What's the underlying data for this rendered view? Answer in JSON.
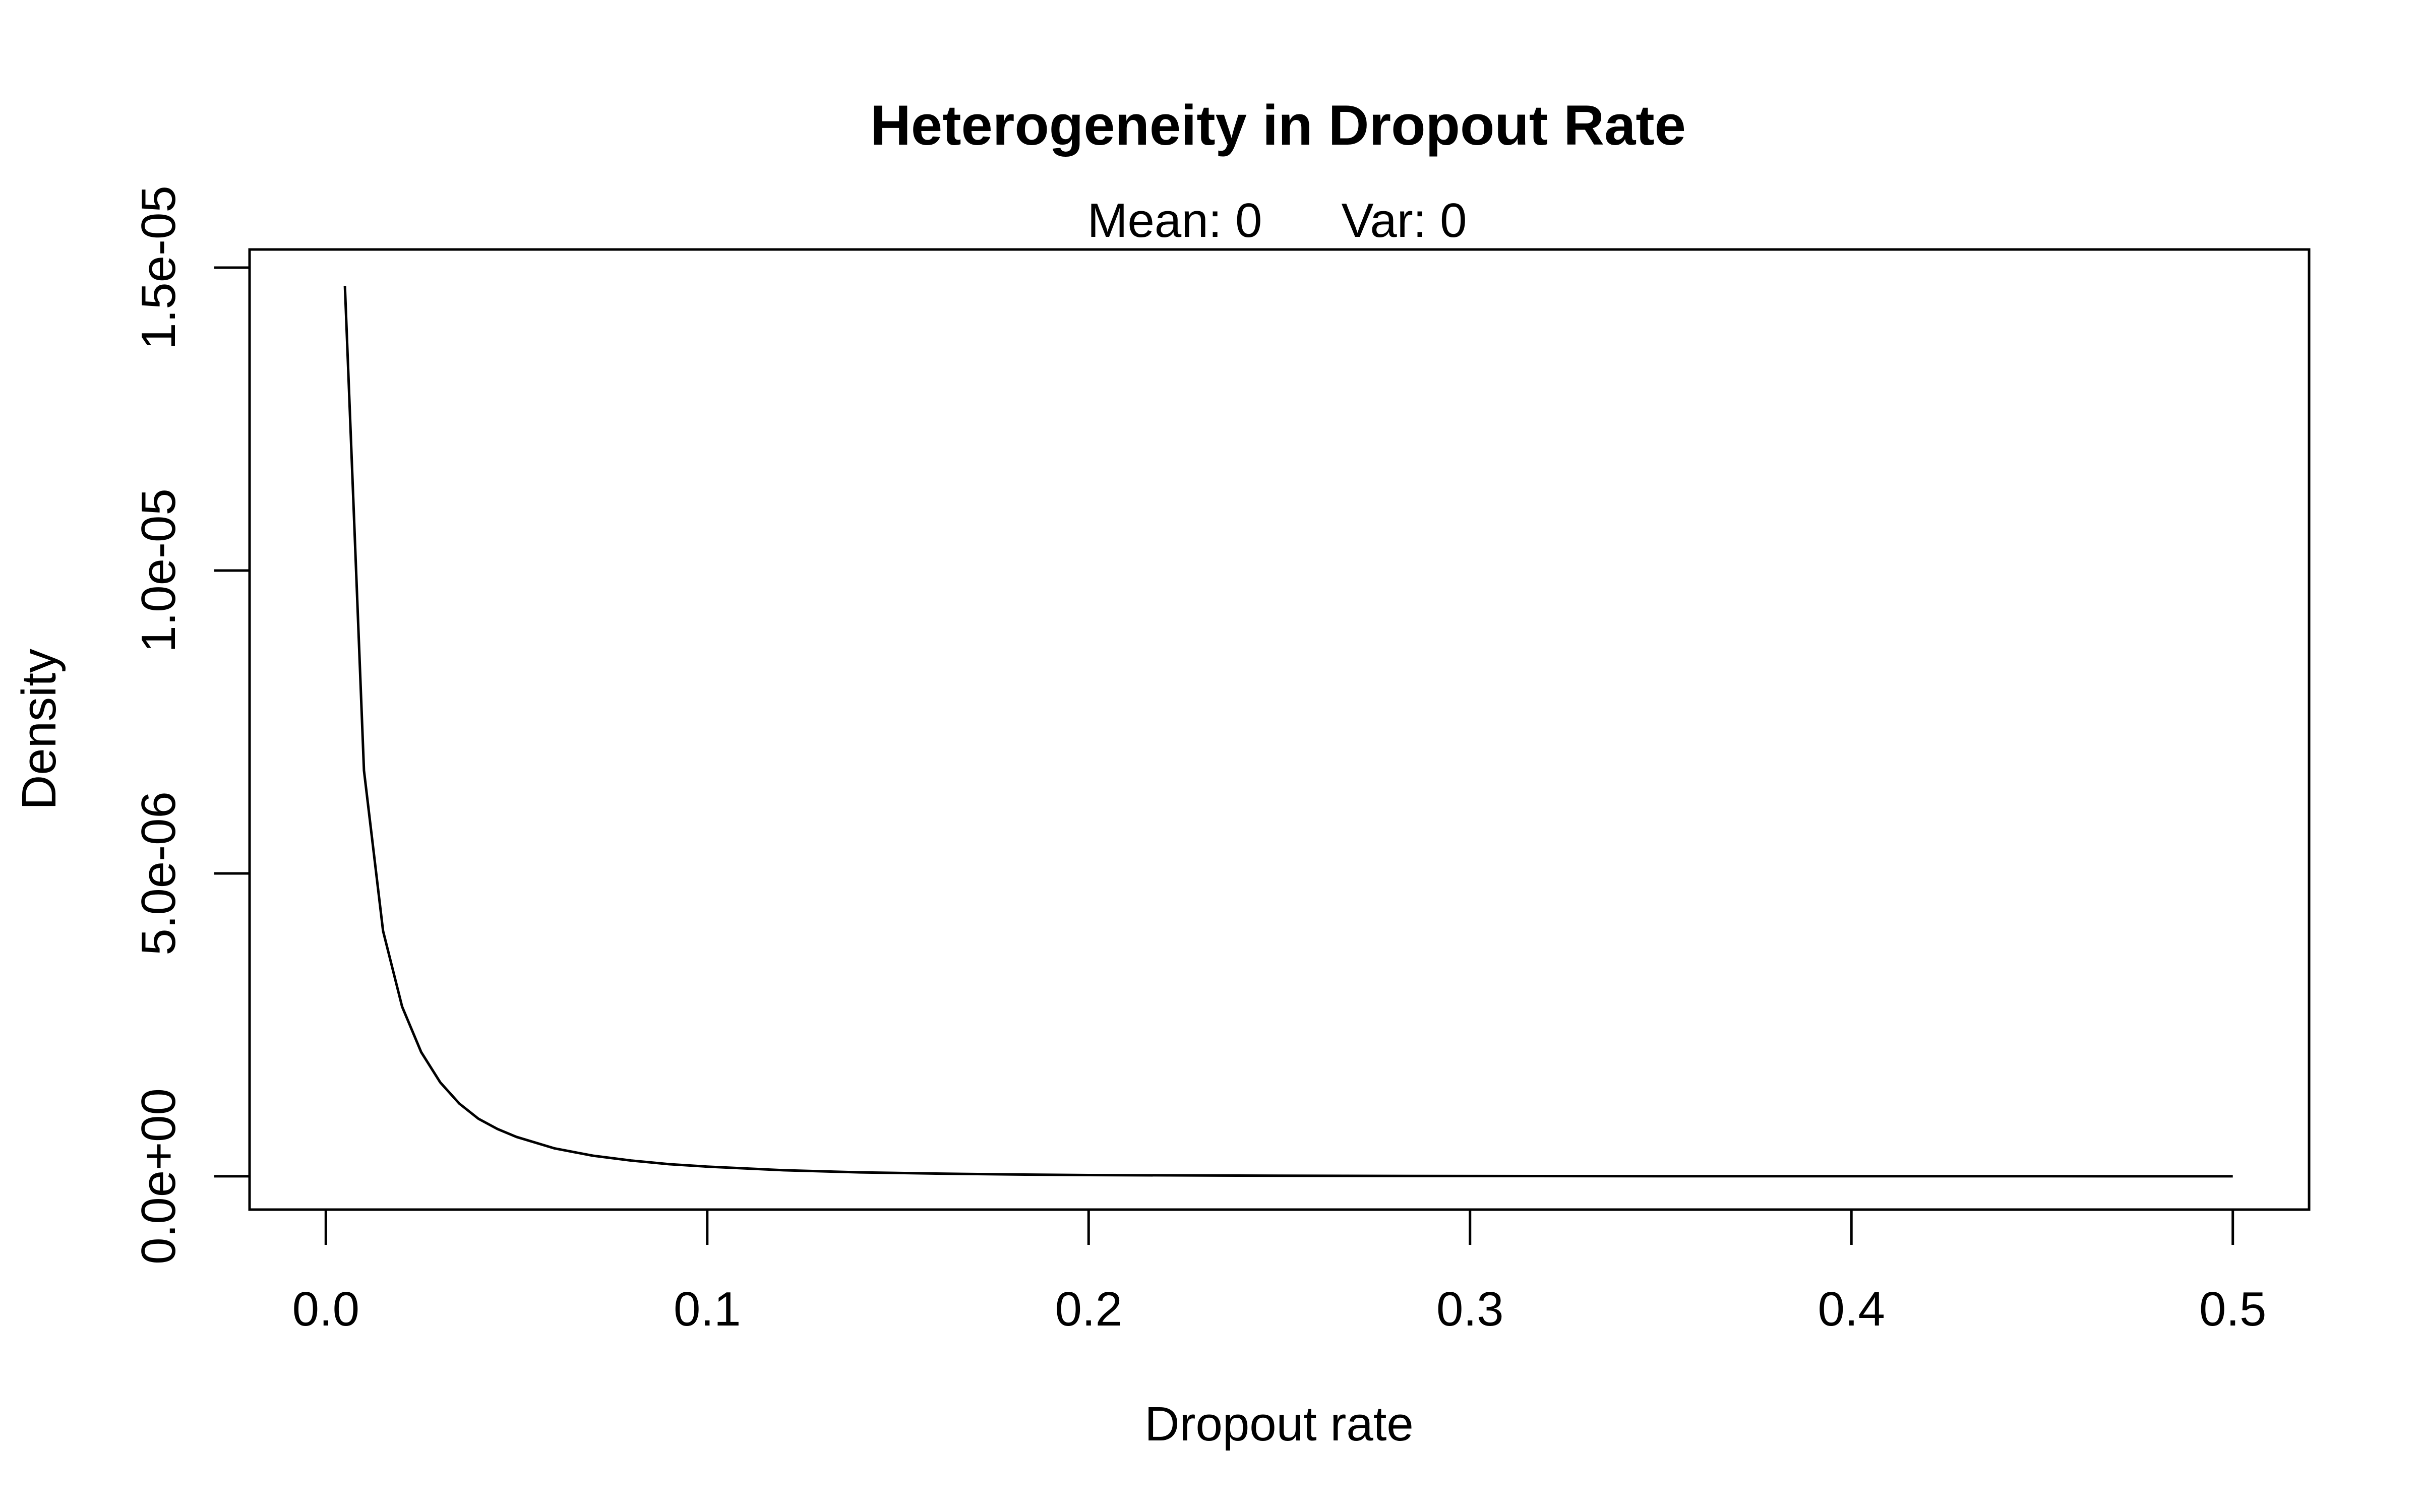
{
  "chart_data": {
    "type": "line",
    "title": "Heterogeneity in Dropout Rate",
    "subtitle": {
      "mean": "Mean: 0",
      "var": "Var: 0"
    },
    "xlabel": "Dropout rate",
    "ylabel": "Density",
    "xlim": [
      -0.02,
      0.52
    ],
    "ylim": [
      -5.5e-07,
      1.53e-05
    ],
    "x_ticks": [
      0.0,
      0.1,
      0.2,
      0.3,
      0.4,
      0.5
    ],
    "x_tick_labels": [
      "0.0",
      "0.1",
      "0.2",
      "0.3",
      "0.4",
      "0.5"
    ],
    "y_ticks": [
      0,
      5e-06,
      1e-05,
      1.5e-05
    ],
    "y_tick_labels": [
      "0.0e+00",
      "5.0e-06",
      "1.0e-05",
      "1.5e-05"
    ],
    "grid": false,
    "series": [
      {
        "color": "#000000",
        "x": [
          0.005,
          0.01,
          0.015,
          0.02,
          0.025,
          0.03,
          0.035,
          0.04,
          0.045,
          0.05,
          0.06,
          0.07,
          0.08,
          0.09,
          0.1,
          0.12,
          0.14,
          0.16,
          0.18,
          0.2,
          0.25,
          0.3,
          0.35,
          0.4,
          0.45,
          0.5
        ],
        "y": [
          1.47e-05,
          6.7e-06,
          4.05e-06,
          2.8e-06,
          2.05e-06,
          1.55e-06,
          1.2e-06,
          9.5e-07,
          7.8e-07,
          6.5e-07,
          4.6e-07,
          3.4e-07,
          2.6e-07,
          2e-07,
          1.6e-07,
          1e-07,
          6.5e-08,
          4.5e-08,
          3e-08,
          2e-08,
          9e-09,
          4e-09,
          2e-09,
          1e-09,
          5e-10,
          2e-10
        ]
      }
    ]
  }
}
